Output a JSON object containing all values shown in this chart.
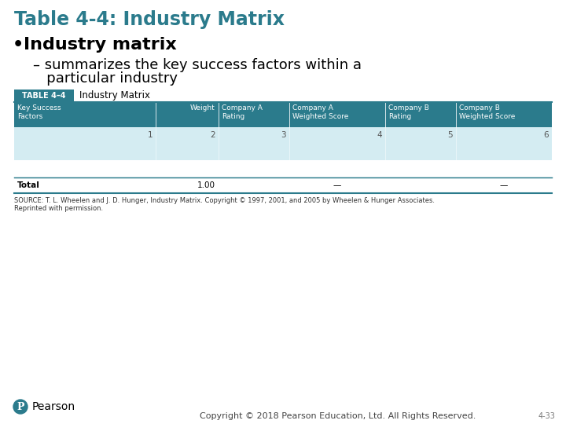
{
  "title": "Table 4-4: Industry Matrix",
  "title_color": "#2B7B8C",
  "bullet_text": "Industry matrix",
  "sub_bullet_line1": "– summarizes the key success factors within a",
  "sub_bullet_line2": "   particular industry",
  "table_label": "TABLE 4–4",
  "table_title": "Industry Matrix",
  "table_header": [
    "Key Success\nFactors",
    "Weight",
    "Company A\nRating",
    "Company A\nWeighted Score",
    "Company B\nRating",
    "Company B\nWeighted Score"
  ],
  "col_numbers": [
    "1",
    "2",
    "3",
    "4",
    "5",
    "6"
  ],
  "total_row": [
    "Total",
    "1.00",
    "",
    "—",
    "",
    "—"
  ],
  "source_line1": "SOURCE: T. L. Wheelen and J. D. Hunger, Industry Matrix. Copyright © 1997, 2001, and 2005 by Wheelen & Hunger Associates.",
  "source_line2": "Reprinted with permission.",
  "footer_text": "Copyright © 2018 Pearson Education, Ltd. All Rights Reserved.",
  "page_num": "4-33",
  "header_bg": "#2B7B8C",
  "header_fg": "#FFFFFF",
  "table_label_bg": "#2B7B8C",
  "table_label_fg": "#FFFFFF",
  "row_bg_light": "#D4ECF2",
  "row_bg_white": "#FFFFFF",
  "border_color": "#2B7B8C",
  "bg_color": "#FFFFFF",
  "col_widths_rel": [
    1.7,
    0.75,
    0.85,
    1.15,
    0.85,
    1.15
  ]
}
